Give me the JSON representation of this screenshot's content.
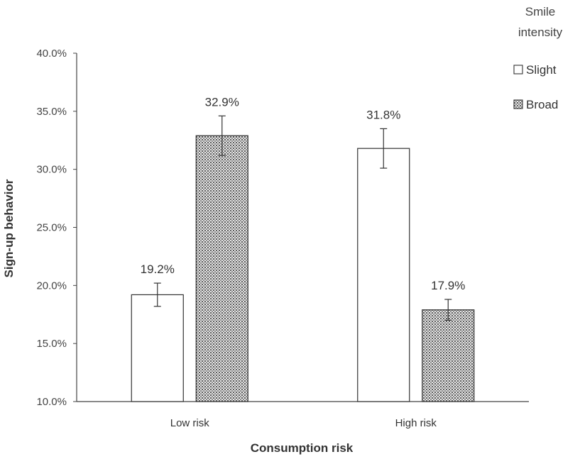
{
  "chart_data": {
    "type": "bar",
    "title": "",
    "xlabel": "Consumption risk",
    "ylabel": "Sign-up behavior",
    "ylim": [
      10.0,
      40.0
    ],
    "yticks": [
      10.0,
      15.0,
      20.0,
      25.0,
      30.0,
      35.0,
      40.0
    ],
    "ytick_labels": [
      "10.0%",
      "15.0%",
      "20.0%",
      "25.0%",
      "30.0%",
      "35.0%",
      "40.0%"
    ],
    "categories": [
      "Low risk",
      "High risk"
    ],
    "legend_title_line1": "Smile",
    "legend_title_line2": "intensity",
    "legend_position": "top-right",
    "grid": false,
    "series": [
      {
        "name": "Slight",
        "pattern": "none",
        "fill": "#ffffff",
        "values": [
          19.2,
          31.8
        ],
        "labels": [
          "19.2%",
          "31.8%"
        ],
        "error": [
          1.0,
          1.7
        ]
      },
      {
        "name": "Broad",
        "pattern": "dots",
        "fill": "#bdbdbd",
        "values": [
          32.9,
          17.9
        ],
        "labels": [
          "32.9%",
          "17.9%"
        ],
        "error": [
          1.7,
          0.9
        ]
      }
    ],
    "colors": {
      "stroke": "#333333",
      "axis": "#444444"
    }
  }
}
